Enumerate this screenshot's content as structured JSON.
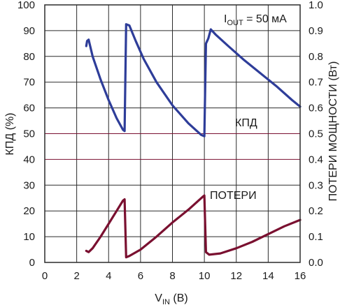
{
  "chart_data": {
    "type": "line",
    "x": {
      "label_main": "V",
      "label_sub": "IN",
      "label_tail": " (В)",
      "ticks": [
        "0",
        "2",
        "4",
        "6",
        "8",
        "10",
        "12",
        "14",
        "16"
      ],
      "range": [
        0,
        16
      ]
    },
    "y_left": {
      "label": "КПД (%)",
      "ticks": [
        "0",
        "10",
        "20",
        "30",
        "40",
        "50",
        "60",
        "70",
        "80",
        "90",
        "100"
      ],
      "range": [
        0,
        100
      ]
    },
    "y_right": {
      "label": "ПОТЕРИ МОЩНОСТИ (Вт)",
      "ticks": [
        "0.0",
        "0.1",
        "0.2",
        "0.3",
        "0.4",
        "0.5",
        "0.6",
        "0.7",
        "0.8",
        "0.9",
        "1.0"
      ],
      "range": [
        0,
        1.0
      ]
    },
    "grid": true,
    "annotation": {
      "main": "I",
      "sub": "OUT",
      "tail": " = 50 мА"
    },
    "series": [
      {
        "name": "КПД",
        "axis": "left",
        "color": "#2e3d99",
        "points": [
          [
            2.6,
            84
          ],
          [
            2.65,
            86
          ],
          [
            2.75,
            86.5
          ],
          [
            3.0,
            80
          ],
          [
            3.5,
            71
          ],
          [
            4.0,
            63
          ],
          [
            4.5,
            56
          ],
          [
            4.9,
            51.5
          ],
          [
            5.0,
            51
          ],
          [
            5.1,
            92.5
          ],
          [
            5.3,
            92
          ],
          [
            5.7,
            86
          ],
          [
            6.2,
            79
          ],
          [
            7.0,
            70
          ],
          [
            8.0,
            61
          ],
          [
            9.0,
            54
          ],
          [
            9.8,
            49.5
          ],
          [
            10.0,
            49
          ],
          [
            10.1,
            85
          ],
          [
            10.25,
            87
          ],
          [
            10.4,
            90.5
          ],
          [
            10.7,
            88.5
          ],
          [
            11.5,
            84
          ],
          [
            12.5,
            78.5
          ],
          [
            13.5,
            73.5
          ],
          [
            14.5,
            68.5
          ],
          [
            15.5,
            63
          ],
          [
            16.0,
            60.5
          ]
        ]
      },
      {
        "name": "ПОТЕРИ",
        "axis": "right",
        "color": "#7a1030",
        "points": [
          [
            2.6,
            0.045
          ],
          [
            2.75,
            0.04
          ],
          [
            3.0,
            0.055
          ],
          [
            3.5,
            0.1
          ],
          [
            4.0,
            0.15
          ],
          [
            4.5,
            0.2
          ],
          [
            4.9,
            0.24
          ],
          [
            5.0,
            0.245
          ],
          [
            5.1,
            0.02
          ],
          [
            5.3,
            0.025
          ],
          [
            6.0,
            0.05
          ],
          [
            7.0,
            0.1
          ],
          [
            8.0,
            0.155
          ],
          [
            9.0,
            0.205
          ],
          [
            9.9,
            0.255
          ],
          [
            10.0,
            0.26
          ],
          [
            10.1,
            0.04
          ],
          [
            10.3,
            0.03
          ],
          [
            11.0,
            0.035
          ],
          [
            12.0,
            0.055
          ],
          [
            13.0,
            0.08
          ],
          [
            14.0,
            0.11
          ],
          [
            15.0,
            0.14
          ],
          [
            16.0,
            0.165
          ]
        ]
      }
    ],
    "labels": {
      "efficiency": "КПД",
      "losses": "ПОТЕРИ"
    }
  },
  "colors": {
    "grid": "#2b2b2b",
    "highlight_grid": "#7a1030",
    "efficiency": "#2e3d99",
    "losses": "#7a1030"
  }
}
